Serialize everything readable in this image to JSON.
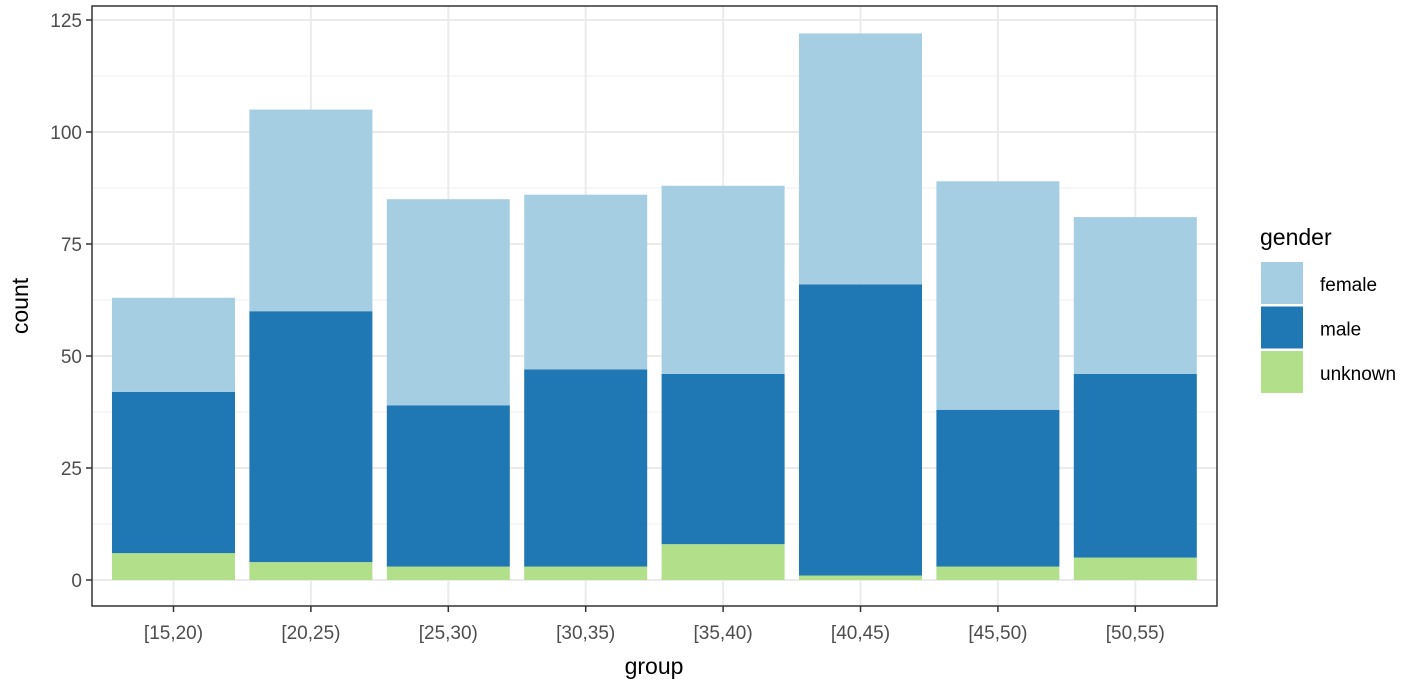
{
  "chart_data": {
    "type": "bar",
    "stacked": true,
    "title": "",
    "xlabel": "group",
    "ylabel": "count",
    "ylim": [
      0,
      125
    ],
    "yticks": [
      0,
      25,
      50,
      75,
      100,
      125
    ],
    "grid": true,
    "legend_position": "right",
    "legend_title": "gender",
    "categories": [
      "[15,20)",
      "[20,25)",
      "[25,30)",
      "[30,35)",
      "[35,40)",
      "[40,45)",
      "[45,50)",
      "[50,55)"
    ],
    "series": [
      {
        "name": "female",
        "color": "#a6cee3",
        "values": [
          21,
          45,
          46,
          39,
          42,
          56,
          51,
          35
        ]
      },
      {
        "name": "male",
        "color": "#1f78b4",
        "values": [
          36,
          56,
          36,
          44,
          38,
          65,
          35,
          41
        ]
      },
      {
        "name": "unknown",
        "color": "#b2df8a",
        "values": [
          6,
          4,
          3,
          3,
          8,
          1,
          3,
          5
        ]
      }
    ],
    "totals": [
      63,
      105,
      85,
      86,
      88,
      122,
      89,
      81
    ]
  }
}
